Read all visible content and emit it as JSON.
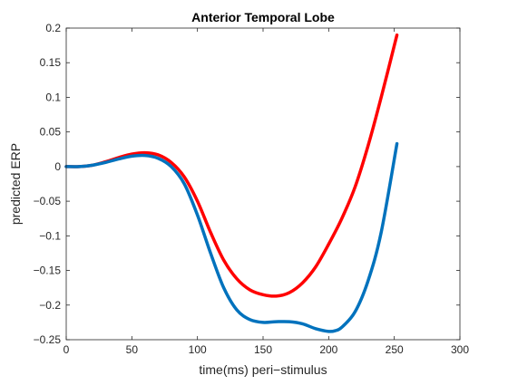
{
  "chart_data": {
    "type": "line",
    "title": "Anterior Temporal Lobe",
    "xlabel": "time(ms) peri−stimulus",
    "ylabel": "predicted ERP",
    "xlim": [
      0,
      300
    ],
    "ylim": [
      -0.25,
      0.2
    ],
    "grid": false,
    "legend": "none",
    "xticks": [
      0,
      50,
      100,
      150,
      200,
      250,
      300
    ],
    "xtick_labels": [
      "0",
      "50",
      "100",
      "150",
      "200",
      "250",
      "300"
    ],
    "yticks": [
      -0.25,
      -0.2,
      -0.15,
      -0.1,
      -0.05,
      0,
      0.05,
      0.1,
      0.15,
      0.2
    ],
    "ytick_labels": [
      "−0.25",
      "−0.2",
      "−0.15",
      "−0.1",
      "−0.05",
      "0",
      "0.05",
      "0.1",
      "0.15",
      "0.2"
    ],
    "series": [
      {
        "color": "#ff0000",
        "x": [
          0,
          10,
          20,
          30,
          40,
          50,
          60,
          70,
          80,
          90,
          100,
          110,
          120,
          130,
          140,
          150,
          160,
          170,
          180,
          190,
          200,
          210,
          220,
          230,
          240,
          252
        ],
        "values": [
          0.0,
          0.0,
          0.002,
          0.007,
          0.013,
          0.018,
          0.02,
          0.017,
          0.006,
          -0.015,
          -0.05,
          -0.095,
          -0.135,
          -0.162,
          -0.178,
          -0.185,
          -0.187,
          -0.182,
          -0.168,
          -0.145,
          -0.112,
          -0.075,
          -0.03,
          0.03,
          0.1,
          0.19
        ]
      },
      {
        "color": "#0072bd",
        "x": [
          0,
          10,
          20,
          30,
          40,
          50,
          60,
          70,
          80,
          90,
          100,
          110,
          120,
          130,
          140,
          150,
          160,
          170,
          180,
          190,
          200,
          205,
          210,
          220,
          230,
          240,
          252
        ],
        "values": [
          0.0,
          0.0,
          0.002,
          0.006,
          0.011,
          0.015,
          0.016,
          0.012,
          0.0,
          -0.025,
          -0.07,
          -0.125,
          -0.175,
          -0.207,
          -0.221,
          -0.225,
          -0.224,
          -0.224,
          -0.227,
          -0.234,
          -0.238,
          -0.237,
          -0.232,
          -0.21,
          -0.165,
          -0.095,
          0.033
        ]
      }
    ]
  }
}
